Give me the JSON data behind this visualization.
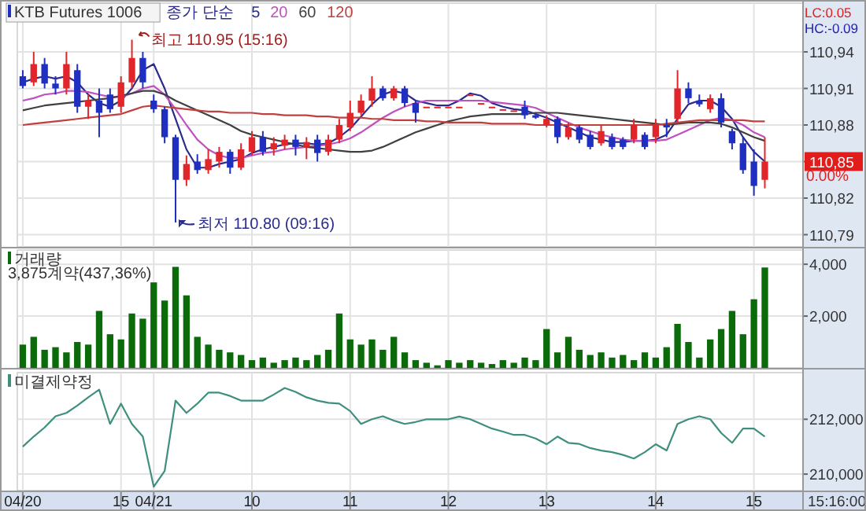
{
  "chart_data": [
    {
      "type": "candlestick",
      "categories": [
        null,
        null,
        null,
        null,
        null,
        null,
        null,
        null,
        null,
        null,
        null,
        null,
        null,
        null,
        null,
        null,
        null,
        null,
        null,
        null,
        null,
        null,
        null,
        null,
        null,
        null,
        null,
        null,
        null,
        null,
        null,
        null,
        null,
        null,
        null,
        null,
        null,
        null,
        null,
        null,
        null,
        null,
        null,
        null,
        null,
        null,
        null,
        null,
        null,
        null,
        null,
        null,
        null,
        null,
        null,
        null,
        null,
        null,
        null,
        null,
        null,
        null,
        null,
        null,
        null,
        null,
        null,
        null,
        null,
        null,
        null,
        null
      ],
      "ylim": [
        110.78,
        110.98
      ],
      "yticks": [
        {
          "value": 110.79,
          "label": "110,79"
        },
        {
          "value": 110.82,
          "label": "110,82"
        },
        {
          "value": 110.85,
          "label": null
        },
        {
          "value": 110.88,
          "label": "110,88"
        },
        {
          "value": 110.91,
          "label": "110,91"
        },
        {
          "value": 110.94,
          "label": "110,94"
        }
      ],
      "grid": true,
      "legend": "top left",
      "tick_labels": "y",
      "legend_title": "종가 단순",
      "series": [
        {
          "name": "KTB Futures 1006",
          "ohlc": [
            [
              110.92,
              110.925,
              110.91,
              110.912
            ],
            [
              110.915,
              110.94,
              110.912,
              110.93
            ],
            [
              110.93,
              110.935,
              110.91,
              110.914
            ],
            [
              110.914,
              110.92,
              110.905,
              110.91
            ],
            [
              110.91,
              110.94,
              110.905,
              110.93
            ],
            [
              110.925,
              110.93,
              110.89,
              110.895
            ],
            [
              110.895,
              110.905,
              110.885,
              110.9
            ],
            [
              110.9,
              110.91,
              110.87,
              110.89
            ],
            [
              110.905,
              110.91,
              110.89,
              110.893
            ],
            [
              110.895,
              110.92,
              110.89,
              110.915
            ],
            [
              110.915,
              110.95,
              110.91,
              110.935
            ],
            [
              110.935,
              110.94,
              110.91,
              110.915
            ],
            [
              110.9,
              110.905,
              110.89,
              110.893
            ],
            [
              110.893,
              110.895,
              110.865,
              110.87
            ],
            [
              110.87,
              110.872,
              110.8,
              110.835
            ],
            [
              110.835,
              110.855,
              110.83,
              110.848
            ],
            [
              110.85,
              110.856,
              110.84,
              110.843
            ],
            [
              110.843,
              110.86,
              110.84,
              110.852
            ],
            [
              110.85,
              110.862,
              110.845,
              110.858
            ],
            [
              110.858,
              110.86,
              110.84,
              110.845
            ],
            [
              110.845,
              110.865,
              110.843,
              110.86
            ],
            [
              110.858,
              110.875,
              110.855,
              110.87
            ],
            [
              110.87,
              110.875,
              110.855,
              110.858
            ],
            [
              110.86,
              110.87,
              110.855,
              110.865
            ],
            [
              110.863,
              110.872,
              110.86,
              110.868
            ],
            [
              110.868,
              110.872,
              110.855,
              110.862
            ],
            [
              110.862,
              110.87,
              110.852,
              110.866
            ],
            [
              110.868,
              110.872,
              110.85,
              110.857
            ],
            [
              110.858,
              110.872,
              110.855,
              110.868
            ],
            [
              110.868,
              110.885,
              110.865,
              110.88
            ],
            [
              110.878,
              110.9,
              110.875,
              110.89
            ],
            [
              110.89,
              110.905,
              110.888,
              110.9
            ],
            [
              110.9,
              110.92,
              110.895,
              110.91
            ],
            [
              110.91,
              110.912,
              110.9,
              110.902
            ],
            [
              110.902,
              110.912,
              110.9,
              110.91
            ],
            [
              110.91,
              110.912,
              110.895,
              110.898
            ],
            [
              110.898,
              110.9,
              110.882,
              110.89
            ],
            [
              110.895,
              110.895,
              110.895,
              110.895
            ],
            [
              110.895,
              110.895,
              110.895,
              110.895
            ],
            [
              110.895,
              110.895,
              110.895,
              110.895
            ],
            [
              110.895,
              110.895,
              110.895,
              110.895
            ],
            [
              110.905,
              110.905,
              110.905,
              110.905
            ],
            [
              110.898,
              110.898,
              110.898,
              110.898
            ],
            [
              110.895,
              110.895,
              110.895,
              110.895
            ],
            [
              110.893,
              110.893,
              110.893,
              110.893
            ],
            [
              110.892,
              110.892,
              110.892,
              110.892
            ],
            [
              110.895,
              110.9,
              110.885,
              110.888
            ],
            [
              110.888,
              110.89,
              110.885,
              110.886
            ],
            [
              110.88,
              110.888,
              110.878,
              110.885
            ],
            [
              110.885,
              110.887,
              110.865,
              110.87
            ],
            [
              110.87,
              110.882,
              110.868,
              110.878
            ],
            [
              110.878,
              110.88,
              110.865,
              110.868
            ],
            [
              110.872,
              110.875,
              110.86,
              110.862
            ],
            [
              110.865,
              110.88,
              110.863,
              110.875
            ],
            [
              110.87,
              110.873,
              110.86,
              110.862
            ],
            [
              110.868,
              110.87,
              110.86,
              110.862
            ],
            [
              110.868,
              110.885,
              110.865,
              110.88
            ],
            [
              110.872,
              110.874,
              110.86,
              110.862
            ],
            [
              110.87,
              110.885,
              110.865,
              110.88
            ],
            [
              110.88,
              110.885,
              110.87,
              110.878
            ],
            [
              110.885,
              110.925,
              110.882,
              110.91
            ],
            [
              110.91,
              110.915,
              110.898,
              110.902
            ],
            [
              110.9,
              110.905,
              110.895,
              110.897
            ],
            [
              110.893,
              110.905,
              110.89,
              110.902
            ],
            [
              110.902,
              110.906,
              110.878,
              110.882
            ],
            [
              110.875,
              110.877,
              110.86,
              110.865
            ],
            [
              110.865,
              110.87,
              110.84,
              110.843
            ],
            [
              110.85,
              110.86,
              110.822,
              110.83
            ],
            [
              110.835,
              110.87,
              110.828,
              110.85
            ],
            null,
            null,
            null
          ]
        },
        {
          "type": "line",
          "name": "5",
          "color": "#2b2b8c",
          "values": [
            110.915,
            110.918,
            110.92,
            110.918,
            110.92,
            110.915,
            110.905,
            110.898,
            110.895,
            110.9,
            110.91,
            110.925,
            110.93,
            110.91,
            110.885,
            110.86,
            110.845,
            110.845,
            110.848,
            110.85,
            110.852,
            110.857,
            110.86,
            110.862,
            110.864,
            110.865,
            110.865,
            110.864,
            110.865,
            110.87,
            110.877,
            110.887,
            110.897,
            110.905,
            110.908,
            110.906,
            110.9,
            110.898,
            110.896,
            110.896,
            110.9,
            110.906,
            110.904,
            110.898,
            110.895,
            110.893,
            110.892,
            110.889,
            110.886,
            110.882,
            110.878,
            110.874,
            110.87,
            110.868,
            110.866,
            110.866,
            110.867,
            110.867,
            110.868,
            110.872,
            110.885,
            110.897,
            110.9,
            110.9,
            110.895,
            110.885,
            110.87,
            110.858,
            110.85,
            null,
            null,
            null
          ]
        },
        {
          "type": "line",
          "name": "20",
          "color": "#c050c0",
          "values": [
            110.9,
            110.902,
            110.905,
            110.906,
            110.908,
            110.908,
            110.907,
            110.905,
            110.903,
            110.903,
            110.906,
            110.91,
            110.912,
            110.905,
            110.893,
            110.88,
            110.868,
            110.86,
            110.855,
            110.853,
            110.853,
            110.855,
            110.857,
            110.858,
            110.86,
            110.861,
            110.862,
            110.863,
            110.864,
            110.866,
            110.869,
            110.874,
            110.88,
            110.886,
            110.891,
            110.895,
            110.898,
            110.9,
            110.9,
            110.9,
            110.9,
            110.9,
            110.9,
            110.899,
            110.898,
            110.897,
            110.896,
            110.894,
            110.89,
            110.886,
            110.882,
            110.878,
            110.875,
            110.872,
            110.87,
            110.868,
            110.867,
            110.867,
            110.867,
            110.868,
            110.872,
            110.876,
            110.88,
            110.884,
            110.886,
            110.884,
            110.88,
            110.874,
            110.87,
            null,
            null,
            null
          ]
        },
        {
          "type": "line",
          "name": "60",
          "color": "#404040",
          "values": [
            110.892,
            110.894,
            110.896,
            110.897,
            110.898,
            110.899,
            110.9,
            110.901,
            110.902,
            110.904,
            110.906,
            110.908,
            110.908,
            110.905,
            110.9,
            110.896,
            110.892,
            110.888,
            110.884,
            110.88,
            110.875,
            110.872,
            110.87,
            110.868,
            110.866,
            110.864,
            110.862,
            110.861,
            110.86,
            110.859,
            110.858,
            110.858,
            110.859,
            110.862,
            110.866,
            110.87,
            110.874,
            110.877,
            110.88,
            110.883,
            110.885,
            110.887,
            110.888,
            110.889,
            110.889,
            110.889,
            110.889,
            110.89,
            110.89,
            110.89,
            110.889,
            110.888,
            110.887,
            110.886,
            110.885,
            110.884,
            110.883,
            110.882,
            110.881,
            110.88,
            110.881,
            110.882,
            110.882,
            110.882,
            110.881,
            110.878,
            110.874,
            110.87,
            110.867,
            null,
            null,
            null
          ]
        },
        {
          "type": "line",
          "name": "120",
          "color": "#c04040",
          "values": [
            110.88,
            110.881,
            110.882,
            110.883,
            110.884,
            110.885,
            110.886,
            110.887,
            110.888,
            110.889,
            110.892,
            110.895,
            110.896,
            110.895,
            110.894,
            110.893,
            110.892,
            110.891,
            110.891,
            110.89,
            110.89,
            110.89,
            110.889,
            110.889,
            110.888,
            110.888,
            110.888,
            110.887,
            110.887,
            110.886,
            110.886,
            110.886,
            110.885,
            110.885,
            110.884,
            110.884,
            110.884,
            110.883,
            110.883,
            110.882,
            110.882,
            110.882,
            110.882,
            110.881,
            110.881,
            110.881,
            110.881,
            110.88,
            110.88,
            110.88,
            110.88,
            110.88,
            110.88,
            110.88,
            110.88,
            110.88,
            110.88,
            110.88,
            110.88,
            110.881,
            110.882,
            110.883,
            110.884,
            110.884,
            110.884,
            110.884,
            110.884,
            110.883,
            110.883,
            null,
            null,
            null
          ]
        }
      ],
      "annotations": [
        "LC:0.05",
        "HC:-0.09",
        "0.00%",
        "최고 110.95 (15:16)",
        "최저 110.80 (09:16)",
        "110,85"
      ]
    },
    {
      "type": "bar",
      "categories": [
        null,
        null,
        null,
        null,
        null,
        null,
        null,
        null,
        null,
        null,
        null,
        null,
        null,
        null,
        null,
        null,
        null,
        null,
        null,
        null,
        null,
        null,
        null,
        null,
        null,
        null,
        null,
        null,
        null,
        null,
        null,
        null,
        null,
        null,
        null,
        null,
        null,
        null,
        null,
        null,
        null,
        null,
        null,
        null,
        null,
        null,
        null,
        null,
        null,
        null,
        null,
        null,
        null,
        null,
        null,
        null,
        null,
        null,
        null,
        null,
        null,
        null,
        null,
        null,
        null,
        null,
        null,
        null,
        null,
        null,
        null,
        null
      ],
      "ylim": [
        0,
        4550
      ],
      "yticks": [
        {
          "value": 2000,
          "label": "2,000"
        },
        {
          "value": 4000,
          "label": "4,000"
        }
      ],
      "grid": true,
      "legend": "top left",
      "tick_labels": "y",
      "series": [
        {
          "name": "거래량",
          "color": "#0b6b0b",
          "values": [
            900,
            1200,
            700,
            800,
            600,
            1000,
            900,
            2200,
            1300,
            1100,
            2100,
            1900,
            3300,
            2600,
            3900,
            2800,
            1200,
            900,
            700,
            600,
            500,
            300,
            400,
            200,
            300,
            400,
            300,
            500,
            700,
            2100,
            1100,
            900,
            1100,
            700,
            1200,
            600,
            300,
            200,
            100,
            300,
            200,
            300,
            200,
            150,
            300,
            200,
            400,
            300,
            1500,
            600,
            1200,
            700,
            500,
            600,
            400,
            500,
            300,
            600,
            400,
            800,
            1700,
            1000,
            400,
            1100,
            1500,
            2200,
            1300,
            2650,
            3875,
            null,
            null,
            null
          ]
        }
      ],
      "annotations": [
        "3,875계약(437,36%)"
      ]
    },
    {
      "type": "line",
      "categories": [
        "04/20",
        null,
        null,
        null,
        null,
        null,
        null,
        null,
        null,
        "15",
        null,
        null,
        "04/21",
        null,
        null,
        null,
        null,
        null,
        null,
        null,
        null,
        "10",
        null,
        null,
        null,
        null,
        null,
        null,
        null,
        null,
        "11",
        null,
        null,
        null,
        null,
        null,
        null,
        null,
        null,
        "12",
        null,
        null,
        null,
        null,
        null,
        null,
        null,
        null,
        "13",
        null,
        null,
        null,
        null,
        null,
        null,
        null,
        null,
        null,
        "14",
        null,
        null,
        null,
        null,
        null,
        null,
        null,
        null,
        "15",
        null,
        null,
        null,
        null
      ],
      "ylim": [
        209400,
        213700
      ],
      "yticks": [
        {
          "value": 210000,
          "label": "210,000"
        },
        {
          "value": 212000,
          "label": "212,000"
        }
      ],
      "grid": true,
      "legend": "top left",
      "series": [
        {
          "name": "미결제약정",
          "color": "#3f8f7f",
          "values": [
            211000,
            211370,
            211700,
            212110,
            212230,
            212500,
            212800,
            213080,
            211830,
            212570,
            211830,
            211370,
            209540,
            210110,
            212680,
            212230,
            212570,
            212970,
            212970,
            212850,
            212680,
            212680,
            212680,
            212900,
            213140,
            213000,
            212800,
            212680,
            212600,
            212570,
            212300,
            211830,
            212000,
            212110,
            211950,
            211830,
            211900,
            212000,
            212000,
            212000,
            212100,
            212000,
            211830,
            211660,
            211550,
            211430,
            211430,
            211300,
            211090,
            211370,
            211140,
            211100,
            210950,
            210860,
            210800,
            210700,
            210570,
            210800,
            211090,
            210860,
            211830,
            212000,
            212110,
            212000,
            211500,
            211140,
            211660,
            211660,
            211370,
            null,
            null,
            null
          ]
        }
      ],
      "annotations": [
        "15:16:00"
      ]
    }
  ]
}
